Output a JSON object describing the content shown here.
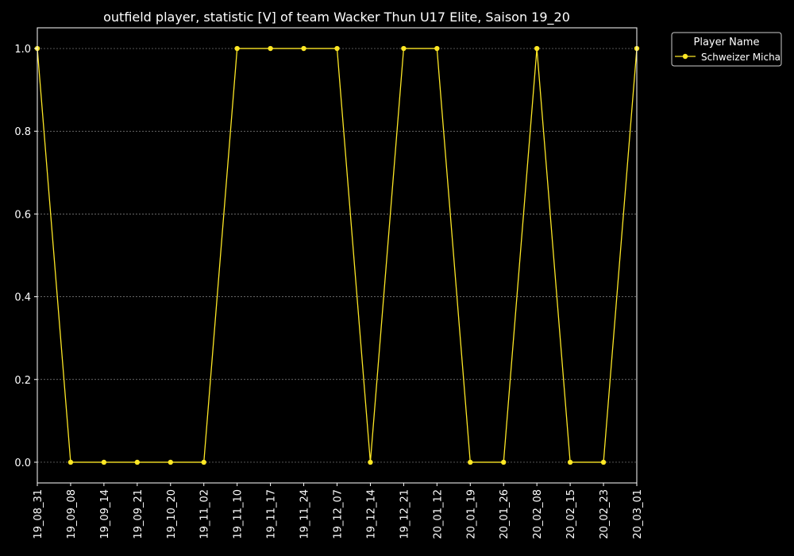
{
  "chart_data": {
    "type": "line",
    "title": "outfield player, statistic [V] of team Wacker Thun U17 Elite, Saison 19_20",
    "xlabel": "",
    "ylabel": "",
    "x": [
      "19_08_31",
      "19_09_08",
      "19_09_14",
      "19_09_21",
      "19_10_20",
      "19_11_02",
      "19_11_10",
      "19_11_17",
      "19_11_24",
      "19_12_07",
      "19_12_14",
      "19_12_21",
      "20_01_12",
      "20_01_19",
      "20_01_26",
      "20_02_08",
      "20_02_15",
      "20_02_23",
      "20_03_01"
    ],
    "series": [
      {
        "name": "Schweizer Micha",
        "values": [
          1,
          0,
          0,
          0,
          0,
          0,
          1,
          1,
          1,
          1,
          0,
          1,
          1,
          0,
          0,
          1,
          0,
          0,
          1
        ]
      }
    ],
    "ylim": [
      -0.05,
      1.05
    ],
    "yticks": [
      0.0,
      0.2,
      0.4,
      0.6,
      0.8,
      1.0
    ],
    "ytick_labels": [
      "0.0",
      "0.2",
      "0.4",
      "0.6",
      "0.8",
      "1.0"
    ],
    "grid": "horizontal dashed",
    "legend": {
      "title": "Player Name",
      "placement": "outside top-right"
    },
    "colors": {
      "background": "#000000",
      "axes": "#ffffff",
      "text": "#ffffff",
      "grid": "#888888",
      "series": "#fde725"
    }
  }
}
